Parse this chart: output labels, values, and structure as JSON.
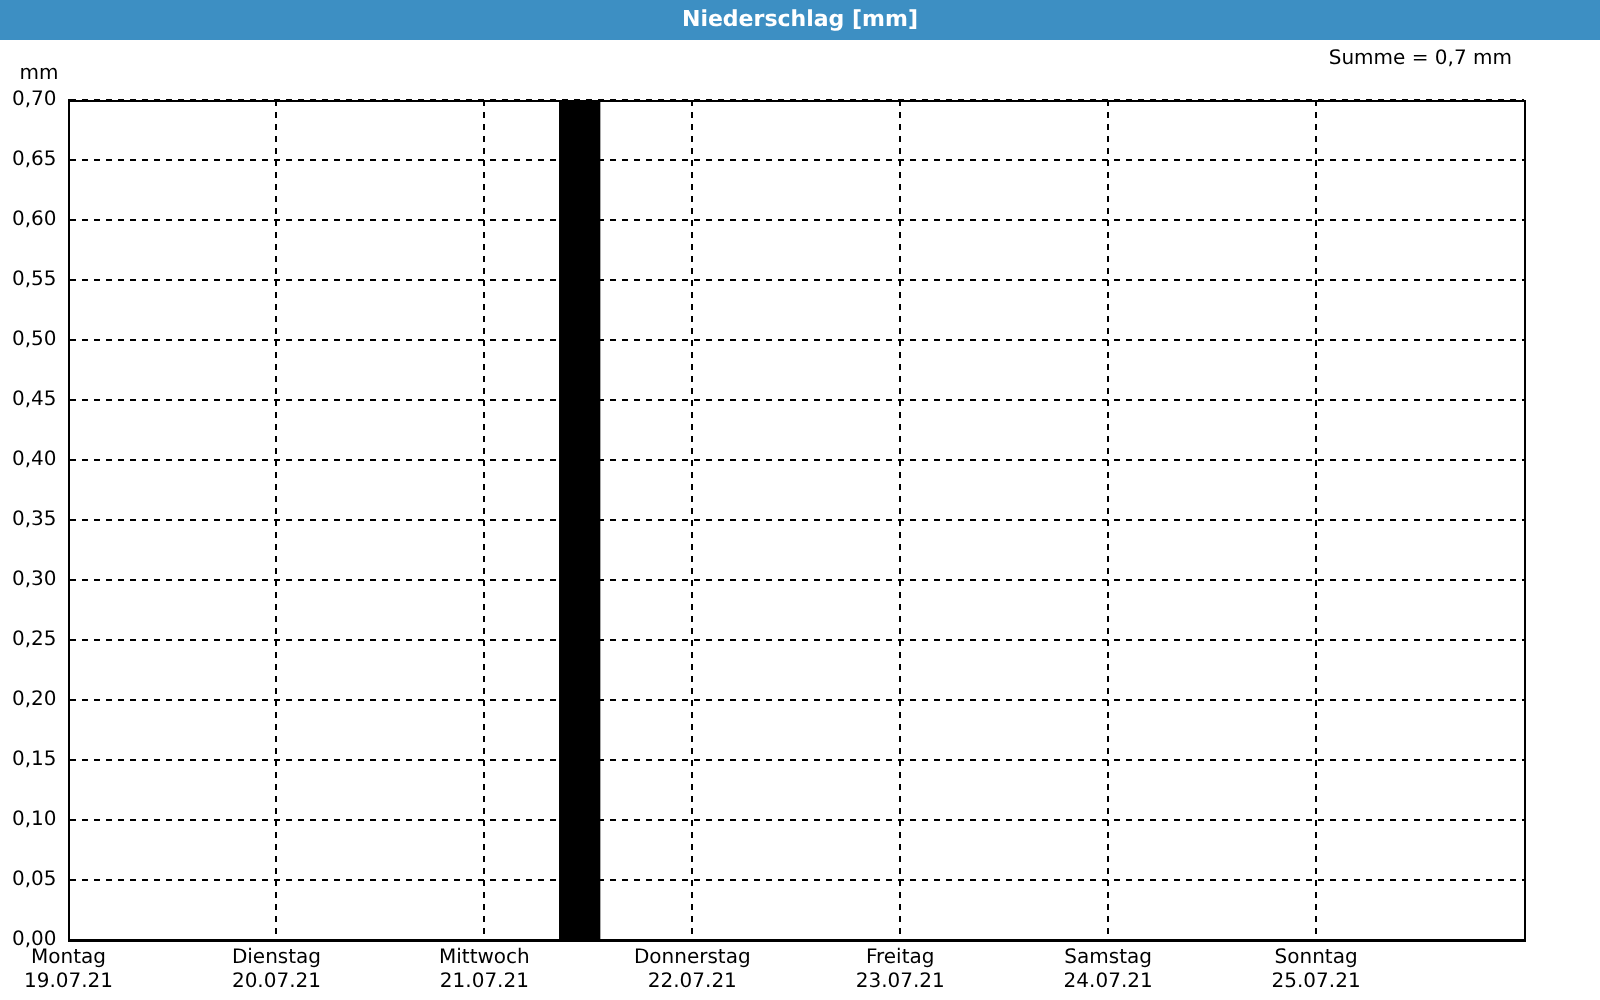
{
  "chart_data": {
    "type": "bar",
    "title": "Niederschlag [mm]",
    "ylabel": "mm",
    "annotations": [
      "Summe = 0,7 mm"
    ],
    "x": [
      "--07-21T11:00"
    ],
    "series": [
      {
        "color": "#000000",
        "values": [
          0.7
        ]
      }
    ],
    "xlim": [
      "--07-19",
      "--07-26"
    ],
    "xticks": [
      {
        "value": "--07-19",
        "label": "Montag\n19.07.21"
      },
      {
        "value": "--07-20",
        "label": "Dienstag\n20.07.21"
      },
      {
        "value": "--07-21",
        "label": "Mittwoch\n21.07.21"
      },
      {
        "value": "--07-22",
        "label": "Donnerstag\n22.07.21"
      },
      {
        "value": "--07-23",
        "label": "Freitag\n23.07.21"
      },
      {
        "value": "--07-24",
        "label": "Samstag\n24.07.21"
      },
      {
        "value": "--07-25",
        "label": "Sonntag\n25.07.21"
      }
    ],
    "ylim": [
      0,
      0.7
    ],
    "yticks": [
      {
        "value": 0,
        "label": "0,00"
      },
      {
        "value": 0.05,
        "label": "0,05"
      },
      {
        "value": 0.1,
        "label": "0,10"
      },
      {
        "value": 0.15,
        "label": "0,15"
      },
      {
        "value": 0.2,
        "label": "0,20"
      },
      {
        "value": 0.25,
        "label": "0,25"
      },
      {
        "value": 0.3,
        "label": "0,30"
      },
      {
        "value": 0.35,
        "label": "0,35"
      },
      {
        "value": 0.4,
        "label": "0,40"
      },
      {
        "value": 0.45,
        "label": "0,45"
      },
      {
        "value": 0.5,
        "label": "0,50"
      },
      {
        "value": 0.55,
        "label": "0,55"
      },
      {
        "value": 0.6,
        "label": "0,60"
      },
      {
        "value": 0.65,
        "label": "0,65"
      },
      {
        "value": 0.7,
        "label": "0,70"
      }
    ],
    "grid": true,
    "legend": false
  }
}
